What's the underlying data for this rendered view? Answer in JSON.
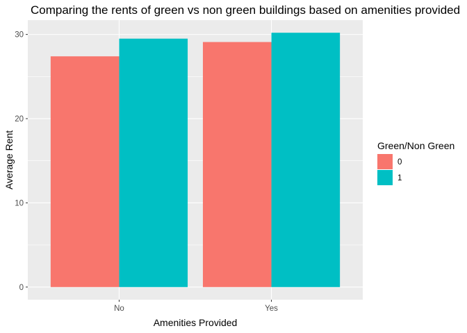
{
  "chart_data": {
    "type": "bar",
    "title": "Comparing the rents of green vs non green buildings based on amenities provided",
    "xlabel": "Amenities Provided",
    "ylabel": "Average Rent",
    "categories": [
      "No",
      "Yes"
    ],
    "series": [
      {
        "name": "0",
        "color": "#F8766D",
        "values": [
          27.4,
          29.1
        ]
      },
      {
        "name": "1",
        "color": "#00BFC4",
        "values": [
          29.5,
          30.2
        ]
      }
    ],
    "ylim": [
      -1.5,
      31.7
    ],
    "yticks": [
      0,
      10,
      20,
      30
    ],
    "grid": true,
    "legend": {
      "title": "Green/Non Green",
      "position": "right"
    },
    "panel_background": "#EBEBEB",
    "grid_color": "#FFFFFF"
  }
}
